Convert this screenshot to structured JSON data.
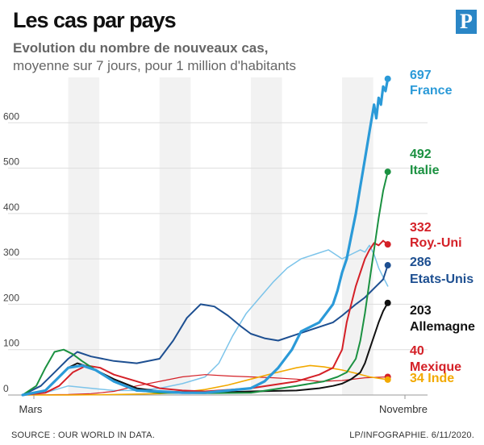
{
  "header": {
    "title": "Les cas par pays",
    "subtitle_bold": "Evolution du nombre de nouveaux cas,",
    "subtitle": "moyenne sur 7 jours, pour 1 million d'habitants",
    "logo": "P"
  },
  "footer": {
    "source": "SOURCE : OUR WORLD IN DATA.",
    "credit": "LP/INFOGRAPHIE.  6/11/2020."
  },
  "chart_data": {
    "type": "line",
    "title": "Les cas par pays",
    "subtitle": "Evolution du nombre de nouveaux cas, moyenne sur 7 jours, pour 1 million d'habitants",
    "xlabel": "",
    "ylabel": "",
    "ylim": [
      0,
      700
    ],
    "yticks": [
      0,
      100,
      200,
      300,
      400,
      500,
      600
    ],
    "x_tick_labels": [
      "Mars",
      "Novembre"
    ],
    "xlim_months": [
      2.0,
      10.2
    ],
    "grid": true,
    "series": [
      {
        "name": "France",
        "end_value": "697",
        "color": "#2b9ad8",
        "width": 3.2,
        "x": [
          2.0,
          2.5,
          2.8,
          3.0,
          3.3,
          3.6,
          4.0,
          4.5,
          5.0,
          5.5,
          6.0,
          6.5,
          7.0,
          7.3,
          7.6,
          7.9,
          8.1,
          8.3,
          8.5,
          8.65,
          8.8,
          8.9,
          9.0,
          9.1,
          9.2,
          9.3,
          9.4,
          9.5,
          9.6,
          9.7,
          9.75,
          9.8,
          9.85,
          9.9,
          9.95,
          10.0
        ],
        "y": [
          0,
          10,
          40,
          60,
          65,
          55,
          30,
          10,
          8,
          5,
          5,
          10,
          15,
          30,
          60,
          100,
          140,
          150,
          160,
          180,
          200,
          230,
          270,
          300,
          350,
          400,
          460,
          520,
          580,
          640,
          610,
          655,
          640,
          680,
          670,
          697
        ]
      },
      {
        "name": "Italie",
        "end_value": "492",
        "color": "#1b9141",
        "width": 2,
        "x": [
          2.0,
          2.3,
          2.5,
          2.7,
          2.9,
          3.1,
          3.3,
          3.6,
          4.0,
          4.5,
          5.0,
          6.0,
          7.0,
          8.0,
          8.6,
          8.9,
          9.1,
          9.3,
          9.4,
          9.5,
          9.6,
          9.7,
          9.8,
          9.9,
          10.0
        ],
        "y": [
          0,
          20,
          60,
          95,
          100,
          90,
          75,
          55,
          30,
          10,
          5,
          4,
          5,
          20,
          30,
          40,
          50,
          80,
          120,
          180,
          250,
          320,
          390,
          450,
          492
        ]
      },
      {
        "name": "Roy.-Uni",
        "end_value": "332",
        "color": "#d42027",
        "width": 2,
        "x": [
          2.0,
          2.5,
          2.8,
          3.1,
          3.4,
          3.7,
          4.0,
          4.5,
          5.0,
          5.5,
          6.0,
          7.0,
          8.0,
          8.5,
          8.8,
          9.0,
          9.1,
          9.2,
          9.3,
          9.4,
          9.5,
          9.6,
          9.7,
          9.8,
          9.9,
          10.0
        ],
        "y": [
          0,
          5,
          20,
          50,
          65,
          60,
          45,
          30,
          15,
          10,
          8,
          15,
          30,
          45,
          60,
          100,
          160,
          200,
          240,
          270,
          300,
          320,
          335,
          330,
          340,
          332
        ]
      },
      {
        "name": "Etats-Unis",
        "end_value": "286",
        "color": "#1d4f91",
        "width": 2,
        "x": [
          2.0,
          2.4,
          2.7,
          3.0,
          3.2,
          3.5,
          4.0,
          4.5,
          5.0,
          5.3,
          5.6,
          5.9,
          6.2,
          6.5,
          6.8,
          7.0,
          7.3,
          7.6,
          7.9,
          8.2,
          8.5,
          8.8,
          9.0,
          9.3,
          9.5,
          9.7,
          9.9,
          10.0
        ],
        "y": [
          0,
          20,
          50,
          80,
          95,
          85,
          75,
          70,
          80,
          120,
          170,
          200,
          195,
          175,
          150,
          135,
          125,
          120,
          130,
          140,
          150,
          160,
          175,
          200,
          215,
          235,
          255,
          286
        ]
      },
      {
        "name": "Allemagne",
        "end_value": "203",
        "color": "#111111",
        "width": 2,
        "x": [
          2.0,
          2.5,
          2.8,
          3.0,
          3.2,
          3.5,
          4.0,
          4.5,
          5.0,
          6.0,
          7.0,
          8.0,
          8.5,
          8.8,
          9.0,
          9.2,
          9.4,
          9.5,
          9.6,
          9.7,
          9.8,
          9.9,
          10.0
        ],
        "y": [
          0,
          10,
          40,
          60,
          70,
          60,
          35,
          15,
          8,
          5,
          8,
          10,
          15,
          20,
          25,
          35,
          50,
          70,
          100,
          130,
          160,
          185,
          203
        ]
      },
      {
        "name": "Mexique",
        "end_value": "40",
        "color": "#d42027",
        "width": 1.2,
        "x": [
          2.0,
          3.0,
          3.5,
          4.0,
          4.5,
          5.0,
          5.5,
          6.0,
          6.5,
          7.0,
          7.5,
          8.0,
          8.5,
          9.0,
          9.5,
          10.0
        ],
        "y": [
          0,
          1,
          3,
          8,
          20,
          30,
          40,
          45,
          42,
          40,
          38,
          35,
          30,
          32,
          38,
          40
        ]
      },
      {
        "name": "Inde",
        "end_value": "34",
        "color": "#f2a900",
        "width": 1.6,
        "x": [
          2.0,
          3.0,
          4.0,
          5.0,
          5.5,
          6.0,
          6.5,
          7.0,
          7.5,
          8.0,
          8.3,
          8.6,
          9.0,
          9.3,
          9.6,
          10.0
        ],
        "y": [
          0,
          0,
          1,
          3,
          6,
          12,
          22,
          35,
          48,
          60,
          65,
          62,
          55,
          48,
          40,
          34
        ]
      },
      {
        "name": "",
        "end_value": "",
        "color": "#7cc4ea",
        "width": 1.5,
        "x": [
          2.0,
          2.5,
          3.0,
          3.5,
          4.0,
          4.5,
          5.0,
          5.5,
          6.0,
          6.3,
          6.6,
          6.9,
          7.2,
          7.5,
          7.8,
          8.1,
          8.4,
          8.7,
          9.0,
          9.2,
          9.4,
          9.5,
          9.6,
          9.7,
          9.8,
          9.9,
          10.0
        ],
        "y": [
          0,
          5,
          20,
          15,
          10,
          10,
          15,
          25,
          40,
          70,
          130,
          180,
          215,
          250,
          280,
          300,
          310,
          320,
          300,
          310,
          320,
          315,
          330,
          310,
          280,
          260,
          240
        ]
      }
    ]
  }
}
